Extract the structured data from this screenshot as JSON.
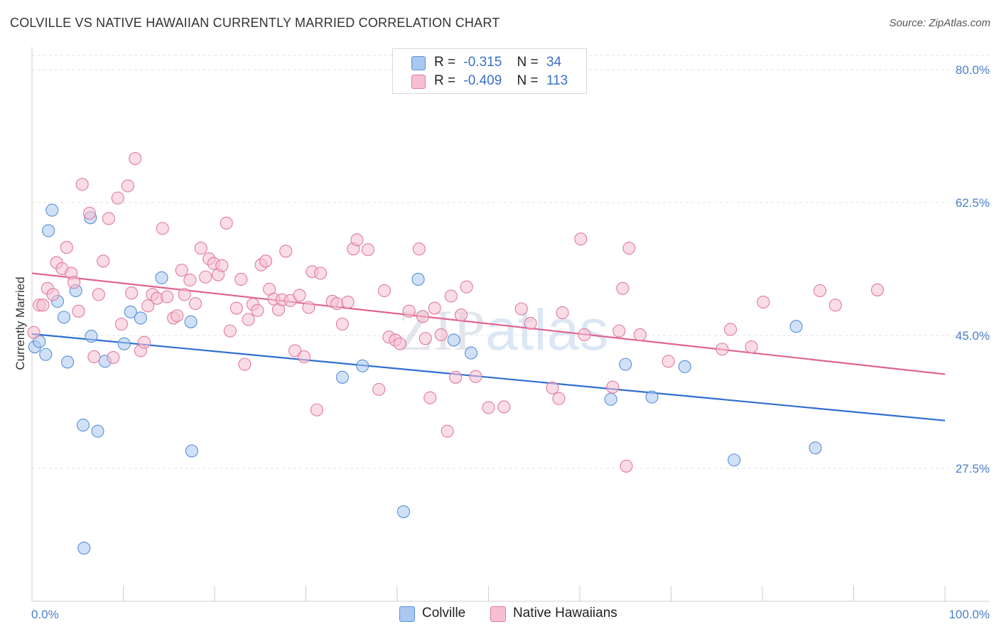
{
  "title": "COLVILLE VS NATIVE HAWAIIAN CURRENTLY MARRIED CORRELATION CHART",
  "source": "Source: ZipAtlas.com",
  "watermark": "ZIPatlas",
  "legend": {
    "rows": [
      {
        "r_label": "R =",
        "r_value": "-0.315",
        "n_label": "N =",
        "n_value": "34",
        "color": "#aac8f0",
        "edge": "#5a8fd6"
      },
      {
        "r_label": "R =",
        "r_value": "-0.409",
        "n_label": "N =",
        "n_value": "113",
        "color": "#f6c0d1",
        "edge": "#e07aa0"
      }
    ]
  },
  "bottom_legend": [
    {
      "label": "Colville",
      "color": "#aac8f0",
      "edge": "#5a8fd6"
    },
    {
      "label": "Native Hawaiians",
      "color": "#f6c0d1",
      "edge": "#e07aa0"
    }
  ],
  "chart_data": {
    "type": "scatter",
    "title": "COLVILLE VS NATIVE HAWAIIAN CURRENTLY MARRIED CORRELATION CHART",
    "xlabel": "",
    "ylabel": "Currently Married",
    "xlim": [
      0,
      100
    ],
    "ylim": [
      10,
      83
    ],
    "x_tick_labels": [
      "0.0%",
      "100.0%"
    ],
    "y_ticks": [
      27.5,
      45.0,
      62.5,
      80.0
    ],
    "y_tick_labels": [
      "27.5%",
      "45.0%",
      "62.5%",
      "80.0%"
    ],
    "grid": true,
    "series": [
      {
        "name": "Colville",
        "color": "#aac8f0",
        "edge": "#5a8fd6",
        "line_color": "#2f6fcf",
        "trend": [
          [
            0,
            45.2
          ],
          [
            100,
            33.8
          ]
        ],
        "points": [
          [
            0.3,
            43.5
          ],
          [
            0.8,
            44.2
          ],
          [
            1.5,
            42.5
          ],
          [
            2.2,
            61.5
          ],
          [
            1.8,
            58.8
          ],
          [
            2.8,
            49.5
          ],
          [
            3.5,
            47.4
          ],
          [
            3.9,
            41.5
          ],
          [
            4.8,
            50.9
          ],
          [
            5.6,
            33.2
          ],
          [
            5.7,
            17.0
          ],
          [
            6.5,
            44.9
          ],
          [
            6.4,
            60.5
          ],
          [
            7.2,
            32.4
          ],
          [
            8.0,
            41.6
          ],
          [
            10.1,
            43.9
          ],
          [
            10.8,
            48.1
          ],
          [
            11.9,
            47.3
          ],
          [
            14.2,
            52.6
          ],
          [
            17.4,
            46.8
          ],
          [
            17.5,
            29.8
          ],
          [
            34.0,
            39.5
          ],
          [
            36.2,
            41.0
          ],
          [
            40.7,
            21.8
          ],
          [
            42.3,
            52.4
          ],
          [
            46.2,
            44.4
          ],
          [
            48.1,
            42.7
          ],
          [
            63.4,
            36.6
          ],
          [
            65.0,
            41.2
          ],
          [
            67.9,
            36.9
          ],
          [
            71.5,
            40.9
          ],
          [
            76.9,
            28.6
          ],
          [
            83.7,
            46.2
          ],
          [
            85.8,
            30.2
          ]
        ]
      },
      {
        "name": "Native Hawaiians",
        "color": "#f6c0d1",
        "edge": "#e07aa0",
        "line_color": "#e0648f",
        "trend": [
          [
            0,
            53.2
          ],
          [
            100,
            39.9
          ]
        ],
        "points": [
          [
            0.2,
            45.4
          ],
          [
            0.8,
            49.0
          ],
          [
            1.2,
            49.0
          ],
          [
            1.7,
            51.2
          ],
          [
            2.3,
            50.4
          ],
          [
            2.7,
            54.6
          ],
          [
            3.3,
            53.8
          ],
          [
            3.8,
            56.6
          ],
          [
            4.3,
            53.2
          ],
          [
            4.6,
            52.0
          ],
          [
            5.1,
            48.2
          ],
          [
            5.5,
            64.9
          ],
          [
            6.3,
            61.1
          ],
          [
            6.8,
            42.2
          ],
          [
            7.3,
            50.4
          ],
          [
            7.8,
            54.8
          ],
          [
            8.4,
            60.4
          ],
          [
            8.9,
            42.1
          ],
          [
            9.4,
            63.1
          ],
          [
            9.8,
            46.5
          ],
          [
            10.5,
            64.7
          ],
          [
            10.9,
            50.6
          ],
          [
            11.3,
            68.3
          ],
          [
            11.9,
            43.0
          ],
          [
            12.3,
            44.1
          ],
          [
            12.7,
            48.9
          ],
          [
            13.2,
            50.4
          ],
          [
            13.7,
            49.9
          ],
          [
            14.3,
            59.1
          ],
          [
            14.8,
            50.1
          ],
          [
            15.5,
            47.3
          ],
          [
            15.9,
            47.6
          ],
          [
            16.4,
            53.6
          ],
          [
            16.7,
            50.4
          ],
          [
            17.3,
            52.3
          ],
          [
            17.9,
            49.2
          ],
          [
            18.5,
            56.5
          ],
          [
            19.0,
            52.7
          ],
          [
            19.4,
            55.1
          ],
          [
            19.9,
            54.5
          ],
          [
            20.4,
            53.0
          ],
          [
            20.8,
            54.2
          ],
          [
            21.3,
            59.8
          ],
          [
            21.7,
            45.6
          ],
          [
            22.4,
            48.6
          ],
          [
            22.9,
            52.4
          ],
          [
            23.3,
            41.2
          ],
          [
            23.7,
            47.1
          ],
          [
            24.2,
            49.1
          ],
          [
            24.7,
            48.3
          ],
          [
            25.1,
            54.3
          ],
          [
            25.6,
            54.8
          ],
          [
            26.0,
            51.1
          ],
          [
            26.5,
            49.8
          ],
          [
            27.0,
            48.4
          ],
          [
            27.4,
            49.7
          ],
          [
            27.8,
            56.1
          ],
          [
            28.3,
            49.6
          ],
          [
            28.8,
            43.0
          ],
          [
            29.3,
            50.3
          ],
          [
            29.8,
            42.2
          ],
          [
            30.3,
            48.7
          ],
          [
            30.7,
            53.4
          ],
          [
            31.2,
            35.2
          ],
          [
            31.6,
            53.2
          ],
          [
            32.9,
            49.5
          ],
          [
            33.4,
            49.2
          ],
          [
            34.0,
            46.5
          ],
          [
            34.6,
            49.4
          ],
          [
            35.2,
            56.4
          ],
          [
            35.6,
            57.6
          ],
          [
            36.8,
            56.3
          ],
          [
            38.0,
            37.9
          ],
          [
            38.6,
            50.9
          ],
          [
            39.1,
            44.8
          ],
          [
            39.8,
            44.4
          ],
          [
            40.3,
            43.9
          ],
          [
            41.3,
            48.2
          ],
          [
            42.4,
            56.4
          ],
          [
            42.8,
            47.5
          ],
          [
            43.1,
            44.6
          ],
          [
            43.6,
            36.8
          ],
          [
            44.1,
            48.6
          ],
          [
            44.8,
            45.1
          ],
          [
            45.5,
            32.4
          ],
          [
            45.9,
            50.2
          ],
          [
            46.4,
            39.5
          ],
          [
            47.0,
            47.7
          ],
          [
            47.6,
            51.4
          ],
          [
            48.6,
            39.6
          ],
          [
            50.0,
            35.5
          ],
          [
            51.7,
            35.6
          ],
          [
            53.6,
            48.5
          ],
          [
            54.6,
            46.6
          ],
          [
            57.0,
            38.1
          ],
          [
            57.7,
            36.7
          ],
          [
            58.1,
            48.0
          ],
          [
            60.1,
            57.7
          ],
          [
            60.5,
            45.1
          ],
          [
            63.6,
            38.2
          ],
          [
            64.3,
            45.6
          ],
          [
            64.7,
            51.2
          ],
          [
            65.4,
            56.5
          ],
          [
            65.1,
            27.8
          ],
          [
            66.6,
            45.1
          ],
          [
            69.7,
            41.6
          ],
          [
            75.6,
            43.2
          ],
          [
            76.5,
            45.8
          ],
          [
            78.8,
            43.5
          ],
          [
            80.1,
            49.4
          ],
          [
            86.3,
            50.9
          ],
          [
            88.0,
            49.0
          ],
          [
            92.6,
            51.0
          ]
        ]
      }
    ]
  }
}
